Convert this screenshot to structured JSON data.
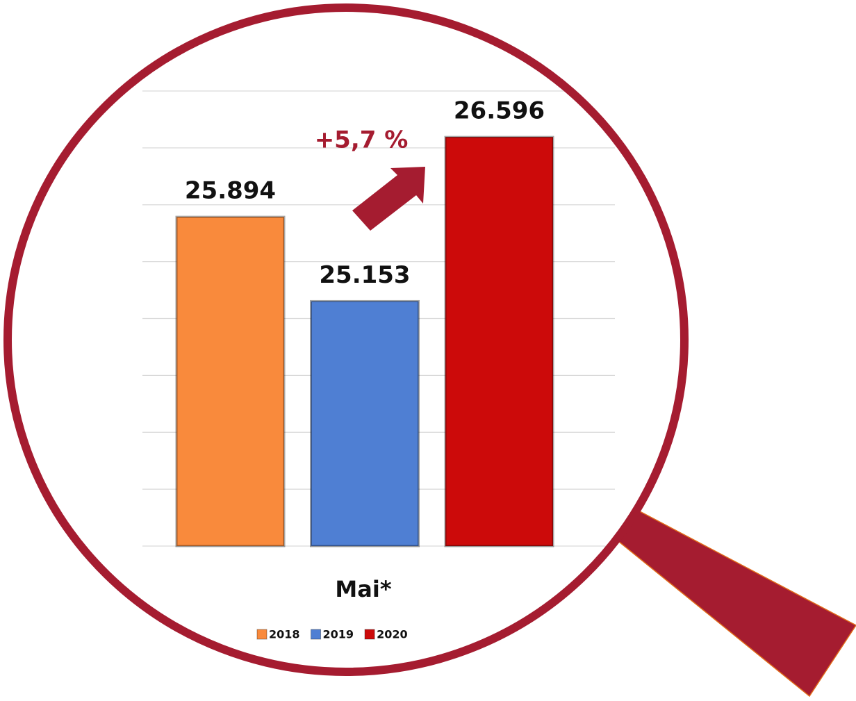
{
  "chart_data": {
    "type": "bar",
    "categories": [
      "Mai*"
    ],
    "series": [
      {
        "name": "2018",
        "color": "#f98a3c",
        "values": [
          25894
        ],
        "value_labels": [
          "25.894"
        ]
      },
      {
        "name": "2019",
        "color": "#4f7fd3",
        "values": [
          25153
        ],
        "value_labels": [
          "25.153"
        ]
      },
      {
        "name": "2020",
        "color": "#cc0a0a",
        "values": [
          26596
        ],
        "value_labels": [
          "26.596"
        ]
      }
    ],
    "annotation": "+5,7 %",
    "ylim": [
      23000,
      27000
    ],
    "yticks": [
      23000,
      23500,
      24000,
      24500,
      25000,
      25500,
      26000,
      26500,
      27000
    ],
    "grid": true,
    "legend": "bottom"
  }
}
